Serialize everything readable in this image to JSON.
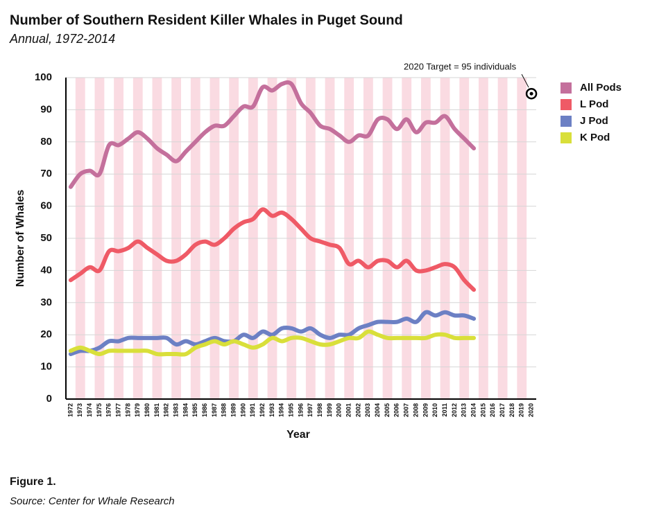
{
  "chart_data": {
    "type": "line",
    "title": "Number of Southern Resident Killer Whales in Puget Sound",
    "subtitle": "Annual, 1972-2014",
    "ylabel": "Number of Whales",
    "xlabel": "Year",
    "x": [
      1972,
      1973,
      1974,
      1975,
      1976,
      1977,
      1978,
      1979,
      1980,
      1981,
      1982,
      1983,
      1984,
      1985,
      1986,
      1987,
      1988,
      1989,
      1990,
      1991,
      1992,
      1993,
      1994,
      1995,
      1996,
      1997,
      1998,
      1999,
      2000,
      2001,
      2002,
      2003,
      2004,
      2005,
      2006,
      2007,
      2008,
      2009,
      2010,
      2011,
      2012,
      2013,
      2014
    ],
    "series": [
      {
        "name": "All Pods",
        "color": "#c4709c",
        "values": [
          66,
          70,
          71,
          70,
          79,
          79,
          81,
          83,
          81,
          78,
          76,
          74,
          77,
          80,
          83,
          85,
          85,
          88,
          91,
          91,
          97,
          96,
          98,
          98,
          92,
          89,
          85,
          84,
          82,
          80,
          82,
          82,
          87,
          87,
          84,
          87,
          83,
          86,
          86,
          88,
          84,
          81,
          78
        ]
      },
      {
        "name": "L Pod",
        "color": "#ef5a66",
        "values": [
          37,
          39,
          41,
          40,
          46,
          46,
          47,
          49,
          47,
          45,
          43,
          43,
          45,
          48,
          49,
          48,
          50,
          53,
          55,
          56,
          59,
          57,
          58,
          56,
          53,
          50,
          49,
          48,
          47,
          42,
          43,
          41,
          43,
          43,
          41,
          43,
          40,
          40,
          41,
          42,
          41,
          37,
          34
        ]
      },
      {
        "name": "J Pod",
        "color": "#6c80c4",
        "values": [
          14,
          15,
          15,
          16,
          18,
          18,
          19,
          19,
          19,
          19,
          19,
          17,
          18,
          17,
          18,
          19,
          18,
          18,
          20,
          19,
          21,
          20,
          22,
          22,
          21,
          22,
          20,
          19,
          20,
          20,
          22,
          23,
          24,
          24,
          24,
          25,
          24,
          27,
          26,
          27,
          26,
          26,
          25
        ]
      },
      {
        "name": "K Pod",
        "color": "#d9df3a",
        "values": [
          15,
          16,
          15,
          14,
          15,
          15,
          15,
          15,
          15,
          14,
          14,
          14,
          14,
          16,
          17,
          18,
          17,
          18,
          17,
          16,
          17,
          19,
          18,
          19,
          19,
          18,
          17,
          17,
          18,
          19,
          19,
          21,
          20,
          19,
          19,
          19,
          19,
          19,
          20,
          20,
          19,
          19,
          19
        ]
      }
    ],
    "xlim": [
      1971.5,
      2020.5
    ],
    "xticks": [
      1972,
      1973,
      1974,
      1975,
      1976,
      1977,
      1978,
      1979,
      1980,
      1981,
      1982,
      1983,
      1984,
      1985,
      1986,
      1987,
      1988,
      1989,
      1990,
      1991,
      1992,
      1993,
      1994,
      1995,
      1996,
      1997,
      1998,
      1999,
      2000,
      2001,
      2002,
      2003,
      2004,
      2005,
      2006,
      2007,
      2008,
      2009,
      2010,
      2011,
      2012,
      2013,
      2014,
      2015,
      2016,
      2017,
      2018,
      2019,
      2020
    ],
    "ylim": [
      0,
      100
    ],
    "yticks": [
      0,
      10,
      20,
      30,
      40,
      50,
      60,
      70,
      80,
      90,
      100
    ],
    "grid": true,
    "stripe_color": "#fadbe2",
    "legend": "right",
    "annotation": {
      "text": "2020 Target = 95 individuals",
      "x": 2020,
      "y": 95
    }
  },
  "caption": {
    "figure": "Figure 1.",
    "source": "Source: Center for Whale Research"
  }
}
